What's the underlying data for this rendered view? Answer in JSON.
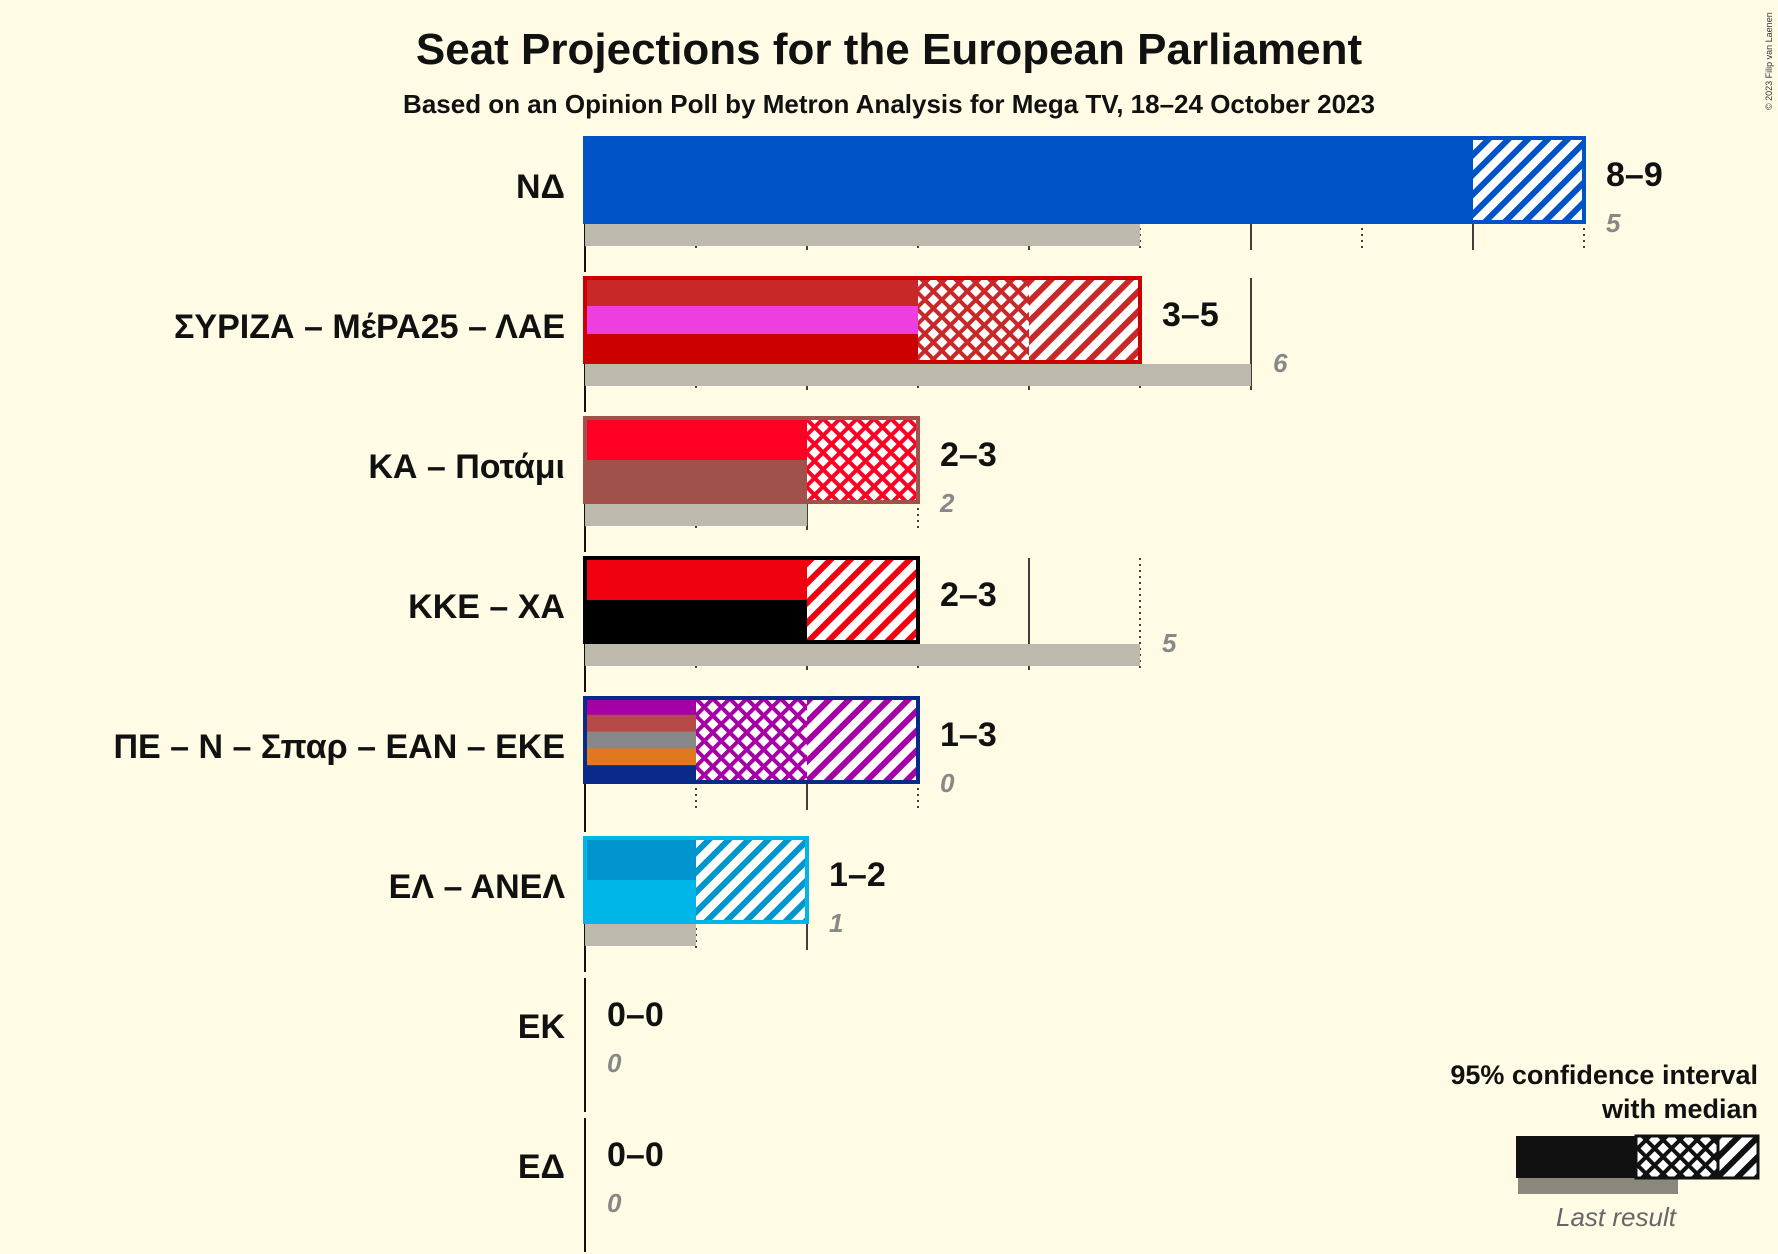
{
  "title": "Seat Projections for the European Parliament",
  "subtitle": "Based on an Opinion Poll by Metron Analysis for Mega TV, 18–24 October 2023",
  "copyright": "© 2023 Filip van Laenen",
  "legend": {
    "line1": "95% confidence interval",
    "line2": "with median",
    "last_result": "Last result"
  },
  "colors": {
    "background": "#fffbe4",
    "last_result_bar": "#bdb9ac",
    "axis": "#111111"
  },
  "chart_data": {
    "type": "bar",
    "orientation": "horizontal",
    "xlim": [
      0,
      9
    ],
    "grid": true,
    "legend_position": "bottom-right",
    "parties": [
      {
        "name": "ΝΔ",
        "low": 8,
        "median": 8,
        "high": 9,
        "last": 5,
        "range": "8–9",
        "last_label": "5",
        "colors": [
          "#0052c7"
        ]
      },
      {
        "name": "ΣΥΡΙΖΑ – ΜέΡΑ25 – ΛΑΕ",
        "low": 3,
        "median": 4,
        "high": 5,
        "last": 6,
        "range": "3–5",
        "last_label": "6",
        "colors": [
          "#c82828",
          "#ee3ee0",
          "#cc0000"
        ]
      },
      {
        "name": "ΚΑ – Ποτάμι",
        "low": 2,
        "median": 3,
        "high": 3,
        "last": 2,
        "range": "2–3",
        "last_label": "2",
        "colors": [
          "#ff0024",
          "#a0524a"
        ]
      },
      {
        "name": "ΚΚΕ – ΧΑ",
        "low": 2,
        "median": 2,
        "high": 3,
        "last": 5,
        "range": "2–3",
        "last_label": "5",
        "colors": [
          "#f10010",
          "#000000"
        ]
      },
      {
        "name": "ΠΕ – Ν – Σπαρ – ΕΑΝ – ΕΚΕ",
        "low": 1,
        "median": 2,
        "high": 3,
        "last": 0,
        "range": "1–3",
        "last_label": "0",
        "colors": [
          "#a500a5",
          "#b64848",
          "#888888",
          "#e07820",
          "#0a2a8a"
        ]
      },
      {
        "name": "ΕΛ – ΑΝΕΛ",
        "low": 1,
        "median": 1,
        "high": 2,
        "last": 1,
        "range": "1–2",
        "last_label": "1",
        "colors": [
          "#0095cc",
          "#00b5e8"
        ]
      },
      {
        "name": "ΕΚ",
        "low": 0,
        "median": 0,
        "high": 0,
        "last": 0,
        "range": "0–0",
        "last_label": "0",
        "colors": [
          "#ffa500"
        ]
      },
      {
        "name": "ΕΔ",
        "low": 0,
        "median": 0,
        "high": 0,
        "last": 0,
        "range": "0–0",
        "last_label": "0",
        "colors": [
          "#444444"
        ]
      }
    ]
  }
}
